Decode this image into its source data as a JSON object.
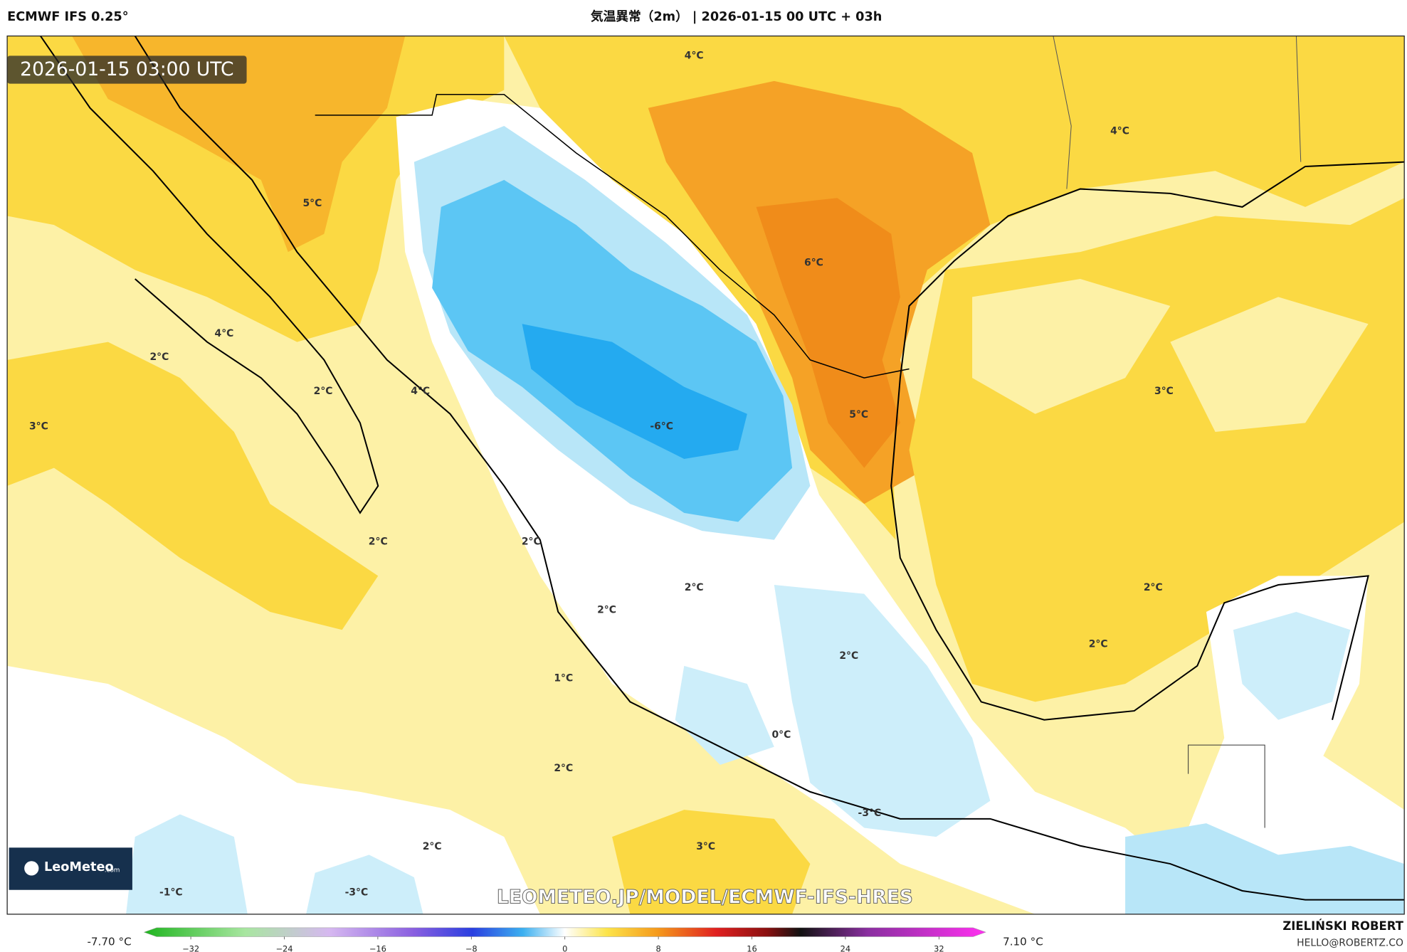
{
  "header": {
    "model": "ECMWF IFS 0.25°",
    "title": "気温異常（2m） | 2026-01-15 00 UTC + 03h"
  },
  "map": {
    "valid_time": "2026-01-15 03:00 UTC",
    "contour_labels": [
      "4°C",
      "4°C",
      "5°C",
      "6°C",
      "4°C",
      "2°C",
      "2°C",
      "4°C",
      "3°C",
      "-6°C",
      "5°C",
      "3°C",
      "2°C",
      "2°C",
      "2°C",
      "2°C",
      "2°C",
      "2°C",
      "2°C",
      "1°C",
      "0°C",
      "2°C",
      "-3°C",
      "2°C",
      "3°C",
      "-1°C",
      "-3°C"
    ],
    "watermark": "LEOMETEO.JP/MODEL/ECMWF-IFS-HRES",
    "logo": {
      "name": "LeoMeteo",
      "suffix": ".com"
    }
  },
  "colorbar": {
    "min_label": "-7.70 °C",
    "max_label": "7.10 °C",
    "lim": [
      -36,
      36
    ],
    "ticks": [
      {
        "value": -32,
        "label": "−32"
      },
      {
        "value": -24,
        "label": "−24"
      },
      {
        "value": -16,
        "label": "−16"
      },
      {
        "value": -8,
        "label": "−8"
      },
      0,
      8,
      16,
      24,
      32
    ]
  },
  "footer": {
    "author": "ZIELIŃSKI ROBERT",
    "email": "HELLO@ROBERTZ.CO"
  }
}
